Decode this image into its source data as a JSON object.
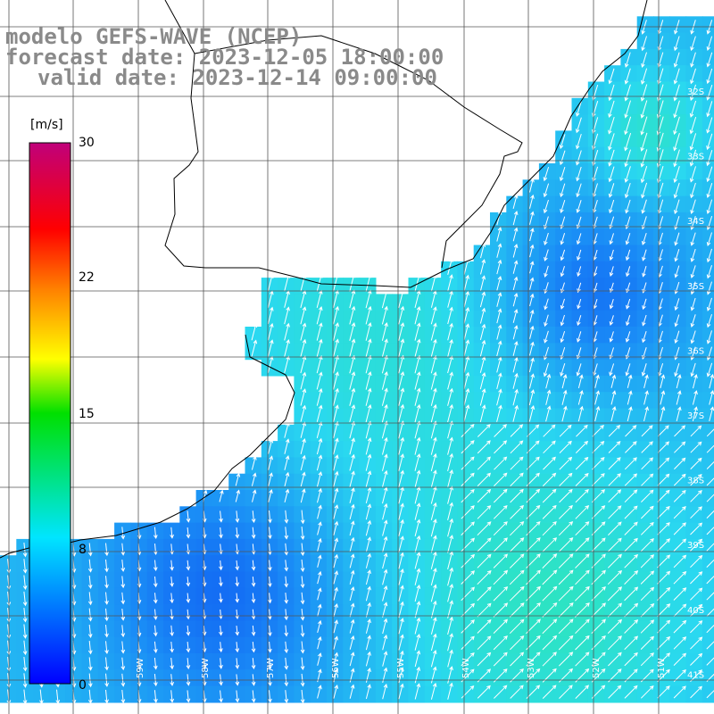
{
  "title": {
    "line1": "modelo GEFS-WAVE (NCEP)",
    "line2": "forecast date: 2023-12-05 18:00:00",
    "line3": "valid date: 2023-12-14 09:00:00"
  },
  "colorbar": {
    "unit": "[m/s]",
    "ticks": [
      "30",
      "22",
      "15",
      "8",
      "0"
    ],
    "range": [
      0,
      30
    ],
    "tick_values": [
      30,
      22,
      15,
      8,
      0
    ],
    "colors": [
      "#0000ff",
      "#00e5ff",
      "#00e000",
      "#ffff00",
      "#ff8000",
      "#ff0000",
      "#c0007a"
    ]
  },
  "map": {
    "lon_labels": [
      "59W",
      "58W",
      "57W",
      "56W",
      "55W",
      "54W",
      "53W",
      "52W",
      "51W"
    ],
    "lat_labels": [
      "32S",
      "33S",
      "34S",
      "35S",
      "36S",
      "37S",
      "38S",
      "39S",
      "40S",
      "41S"
    ],
    "field_colors": {
      "low": "#0a3cf0",
      "mid": "#1a8cf6",
      "high": "#2ad8f0",
      "peak": "#2ee8b0"
    }
  }
}
